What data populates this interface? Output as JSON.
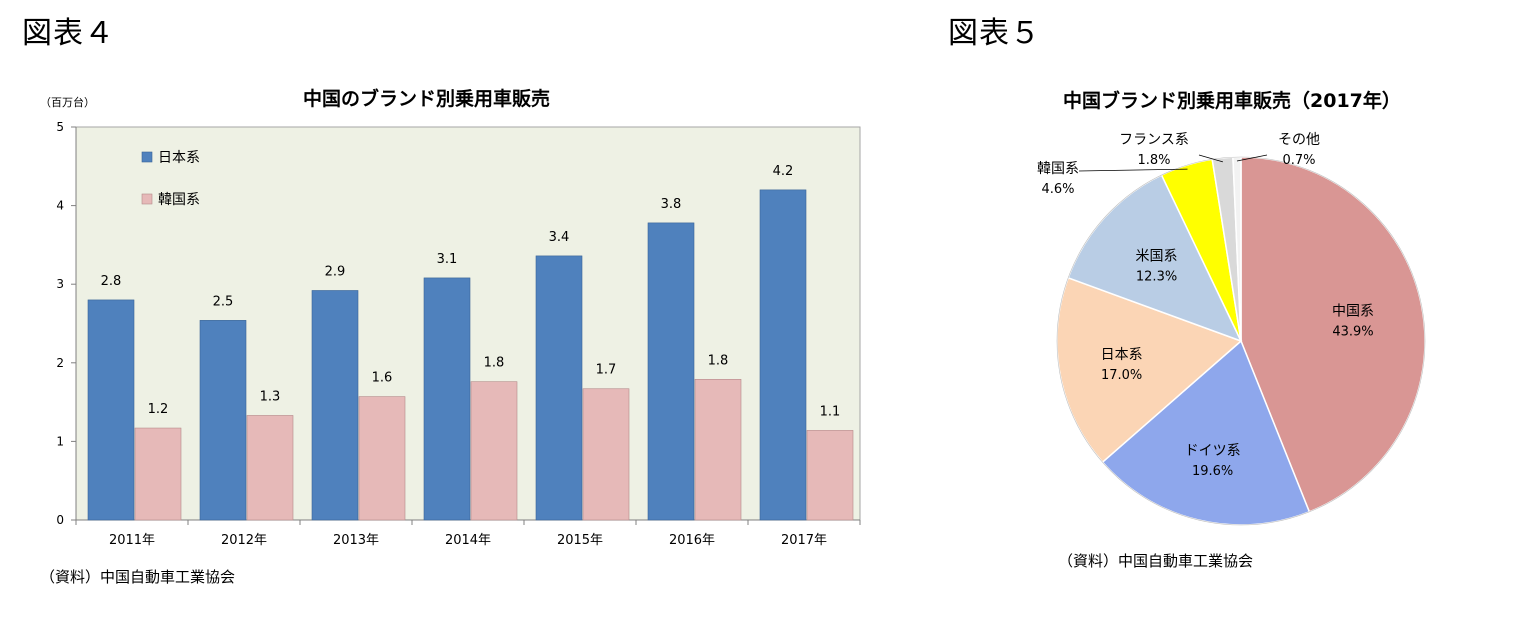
{
  "figures": {
    "fig4_label": "図表４",
    "fig5_label": "図表５"
  },
  "chart_data": [
    {
      "type": "bar",
      "title": "中国のブランド別乗用車販売",
      "unit_label": "（百万台）",
      "categories": [
        "2011年",
        "2012年",
        "2013年",
        "2014年",
        "2015年",
        "2016年",
        "2017年"
      ],
      "series": [
        {
          "name": "日本系",
          "color": "#4f81bd",
          "values": [
            2.8,
            2.54,
            2.92,
            3.08,
            3.36,
            3.78,
            4.2
          ],
          "labels": [
            "2.8",
            "2.5",
            "2.9",
            "3.1",
            "3.4",
            "3.8",
            "4.2"
          ]
        },
        {
          "name": "韓国系",
          "color": "#e6b9b8",
          "values": [
            1.17,
            1.33,
            1.57,
            1.76,
            1.67,
            1.79,
            1.14
          ],
          "labels": [
            "1.2",
            "1.3",
            "1.6",
            "1.8",
            "1.7",
            "1.8",
            "1.1"
          ]
        }
      ],
      "ylim": [
        0,
        5
      ],
      "yticks": [
        "0",
        "1",
        "2",
        "3",
        "4",
        "5"
      ],
      "grid": false,
      "legend": "top-left",
      "plot_background": "#eef1e4",
      "source": "（資料）中国自動車工業協会"
    },
    {
      "type": "pie",
      "title": "中国ブランド別乗用車販売（2017年）",
      "slices": [
        {
          "name": "中国系",
          "value": 43.9,
          "label": "43.9%",
          "color": "#d99694"
        },
        {
          "name": "ドイツ系",
          "value": 19.6,
          "label": "19.6%",
          "color": "#8ea7ec"
        },
        {
          "name": "日本系",
          "value": 17.0,
          "label": "17.0%",
          "color": "#fbd5b5"
        },
        {
          "name": "米国系",
          "value": 12.3,
          "label": "12.3%",
          "color": "#b9cde5"
        },
        {
          "name": "韓国系",
          "value": 4.6,
          "label": "4.6%",
          "color": "#ffff00"
        },
        {
          "name": "フランス系",
          "value": 1.8,
          "label": "1.8%",
          "color": "#d9d9d9"
        },
        {
          "name": "その他",
          "value": 0.7,
          "label": "0.7%",
          "color": "#f2f2f2"
        }
      ],
      "source": "（資料）中国自動車工業協会"
    }
  ]
}
